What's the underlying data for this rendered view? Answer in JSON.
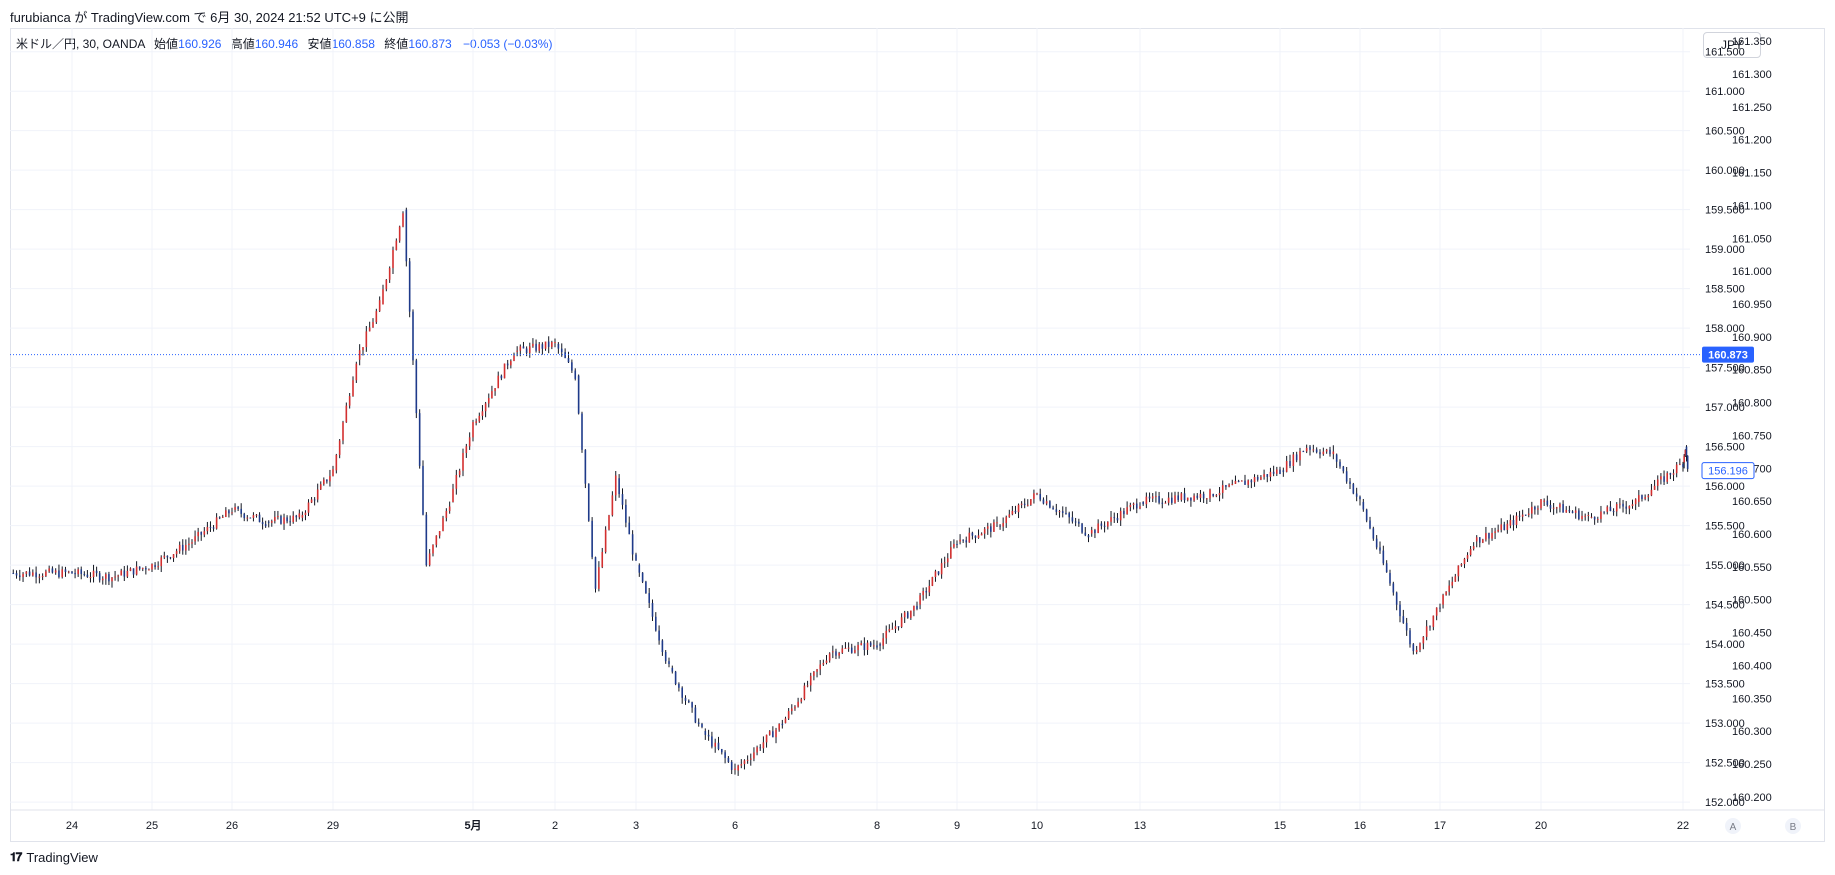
{
  "header": {
    "text": "furubianca が TradingView.com で 6月 30, 2024 21:52 UTC+9 に公開"
  },
  "legend": {
    "symbol": "米ドル／円, 30, OANDA",
    "open_label": "始値",
    "open": "160.926",
    "high_label": "高値",
    "high": "160.946",
    "low_label": "安値",
    "low": "160.858",
    "close_label": "終値",
    "close": "160.873",
    "change": "−0.053 (−0.03%)"
  },
  "currency_button": "JPY",
  "footer": {
    "brand": "TradingView",
    "logo": "tv-logo-icon"
  },
  "colors": {
    "up": "#d32f2f",
    "down": "#1e3a8a",
    "accent": "#2962ff",
    "grid": "#f0f3fa"
  },
  "chart_data": {
    "type": "candlestick",
    "symbol": "USD/JPY",
    "interval": "30",
    "left_axis": {
      "ticks": [
        "161.350",
        "161.300",
        "161.250",
        "161.200",
        "161.150",
        "161.100",
        "161.050",
        "161.000",
        "160.950",
        "160.900",
        "160.850",
        "160.800",
        "160.750",
        "160.700",
        "160.650",
        "160.600",
        "160.550",
        "160.500",
        "160.450",
        "160.400",
        "160.350",
        "160.300",
        "160.250",
        "160.200"
      ],
      "range": [
        160.18,
        161.37
      ]
    },
    "right_axis": {
      "ticks": [
        "161.500",
        "161.000",
        "160.500",
        "160.000",
        "159.500",
        "159.000",
        "158.500",
        "158.000",
        "157.500",
        "157.000",
        "156.500",
        "156.000",
        "155.500",
        "155.000",
        "154.500",
        "154.000",
        "153.500",
        "153.000",
        "152.500",
        "152.000"
      ],
      "range": [
        151.9,
        161.8
      ]
    },
    "x_ticks": [
      "24",
      "25",
      "26",
      "29",
      "5月",
      "2",
      "3",
      "6",
      "8",
      "9",
      "10",
      "13",
      "15",
      "16",
      "17",
      "20",
      "22"
    ],
    "axis_buttons": [
      "A",
      "B"
    ],
    "price_line": {
      "label": "160.873",
      "value": 160.873
    },
    "last_price_label": {
      "label": "156.196",
      "value": 156.196
    },
    "grid": true,
    "price_path": [
      {
        "d": "24",
        "v": 154.9
      },
      {
        "d": "24",
        "v": 154.85
      },
      {
        "d": "25",
        "v": 155.0
      },
      {
        "d": "25",
        "v": 155.3
      },
      {
        "d": "26",
        "v": 155.7
      },
      {
        "d": "26",
        "v": 155.55
      },
      {
        "d": "26",
        "v": 155.6
      },
      {
        "d": "29",
        "v": 156.2
      },
      {
        "d": "29",
        "v": 157.6
      },
      {
        "d": "29",
        "v": 158.3
      },
      {
        "d": "29",
        "v": 159.5
      },
      {
        "d": "29",
        "v": 155.0
      },
      {
        "d": "29",
        "v": 155.8
      },
      {
        "d": "5月",
        "v": 156.8
      },
      {
        "d": "5月",
        "v": 157.7
      },
      {
        "d": "2",
        "v": 157.8
      },
      {
        "d": "2",
        "v": 157.4
      },
      {
        "d": "2",
        "v": 154.7
      },
      {
        "d": "2",
        "v": 156.1
      },
      {
        "d": "3",
        "v": 155.0
      },
      {
        "d": "3",
        "v": 153.7
      },
      {
        "d": "3",
        "v": 152.9
      },
      {
        "d": "6",
        "v": 152.4
      },
      {
        "d": "6",
        "v": 153.0
      },
      {
        "d": "6",
        "v": 153.9
      },
      {
        "d": "8",
        "v": 154.0
      },
      {
        "d": "8",
        "v": 154.5
      },
      {
        "d": "9",
        "v": 155.3
      },
      {
        "d": "9",
        "v": 155.5
      },
      {
        "d": "10",
        "v": 155.9
      },
      {
        "d": "10",
        "v": 155.4
      },
      {
        "d": "13",
        "v": 155.8
      },
      {
        "d": "13",
        "v": 155.9
      },
      {
        "d": "15",
        "v": 156.2
      },
      {
        "d": "15",
        "v": 156.5
      },
      {
        "d": "15",
        "v": 156.4
      },
      {
        "d": "16",
        "v": 155.8
      },
      {
        "d": "16",
        "v": 154.9
      },
      {
        "d": "16",
        "v": 153.9
      },
      {
        "d": "17",
        "v": 154.5
      },
      {
        "d": "17",
        "v": 155.3
      },
      {
        "d": "17",
        "v": 155.5
      },
      {
        "d": "20",
        "v": 155.8
      },
      {
        "d": "20",
        "v": 155.6
      },
      {
        "d": "20",
        "v": 155.8
      },
      {
        "d": "22",
        "v": 156.3
      },
      {
        "d": "22",
        "v": 156.5
      },
      {
        "d": "22",
        "v": 156.2
      }
    ]
  }
}
